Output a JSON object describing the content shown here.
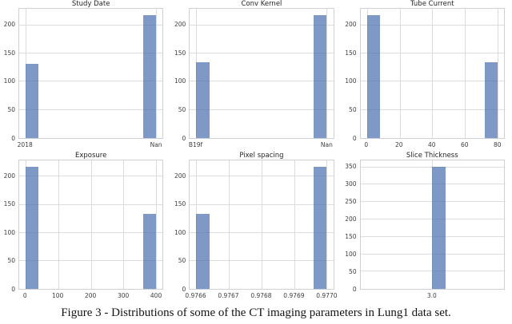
{
  "caption": "Figure 3 - Distributions of some of the CT imaging parameters in Lung1 data set.",
  "colors": {
    "bar_base": "#4C72B0",
    "bar_fill": "rgba(76,114,176,0.72)",
    "gridline": "#dcdcdc",
    "spine": "#cdd0d4",
    "tick_label": "#3d3d3d",
    "title_text": "#262626",
    "caption_text": "#141414"
  },
  "chart_data": [
    {
      "type": "bar",
      "title": "Study Date",
      "categories": [
        "2018",
        "Nan"
      ],
      "values": [
        132,
        218
      ],
      "ylim": [
        0,
        229
      ],
      "yticks": [
        0,
        50,
        100,
        150,
        200
      ],
      "grid": true,
      "legend": false,
      "xticks": [
        {
          "label": "2018",
          "pct": 4.55
        },
        {
          "label": "Nan",
          "pct": 95.45
        }
      ],
      "bars": [
        {
          "x": "2018",
          "value": 132,
          "left_pct": 4.55,
          "width_pct": 9.09
        },
        {
          "x": "Nan",
          "value": 218,
          "left_pct": 86.36,
          "width_pct": 9.09
        }
      ]
    },
    {
      "type": "bar",
      "title": "Conv Kernel",
      "categories": [
        "B19f",
        "Nan"
      ],
      "values": [
        134,
        218
      ],
      "ylim": [
        0,
        229
      ],
      "yticks": [
        0,
        50,
        100,
        150,
        200
      ],
      "grid": true,
      "legend": false,
      "xticks": [
        {
          "label": "B19f",
          "pct": 4.55
        },
        {
          "label": "Nan",
          "pct": 95.45
        }
      ],
      "bars": [
        {
          "x": "B19f",
          "value": 134,
          "left_pct": 4.55,
          "width_pct": 9.09
        },
        {
          "x": "Nan",
          "value": 218,
          "left_pct": 86.36,
          "width_pct": 9.09
        }
      ]
    },
    {
      "type": "histogram",
      "title": "Tube Current",
      "categories": [
        "0",
        "75"
      ],
      "values": [
        218,
        134
      ],
      "xlim": [
        -4,
        84
      ],
      "ylim": [
        0,
        229
      ],
      "yticks": [
        0,
        50,
        100,
        150,
        200
      ],
      "grid": true,
      "legend": false,
      "xticks": [
        {
          "label": "0",
          "pct": 4.55
        },
        {
          "label": "20",
          "pct": 27.27
        },
        {
          "label": "40",
          "pct": 50
        },
        {
          "label": "60",
          "pct": 72.73
        },
        {
          "label": "80",
          "pct": 95.45
        }
      ],
      "bars": [
        {
          "x": "0",
          "value": 218,
          "left_pct": 4.55,
          "width_pct": 9.09
        },
        {
          "x": "75",
          "value": 134,
          "left_pct": 86.36,
          "width_pct": 9.09
        }
      ]
    },
    {
      "type": "histogram",
      "title": "Exposure",
      "categories": [
        "0",
        "400"
      ],
      "values": [
        218,
        134
      ],
      "xlim": [
        -20,
        420
      ],
      "ylim": [
        0,
        229
      ],
      "yticks": [
        0,
        50,
        100,
        150,
        200
      ],
      "grid": true,
      "legend": false,
      "xticks": [
        {
          "label": "0",
          "pct": 4.55
        },
        {
          "label": "100",
          "pct": 27.27
        },
        {
          "label": "200",
          "pct": 50
        },
        {
          "label": "300",
          "pct": 72.73
        },
        {
          "label": "400",
          "pct": 95.45
        }
      ],
      "bars": [
        {
          "x": "0",
          "value": 218,
          "left_pct": 4.55,
          "width_pct": 9.09
        },
        {
          "x": "400",
          "value": 134,
          "left_pct": 86.36,
          "width_pct": 9.09
        }
      ]
    },
    {
      "type": "histogram",
      "title": "Pixel spacing",
      "categories": [
        "0.9766",
        "0.9770"
      ],
      "values": [
        134,
        218
      ],
      "xlim": [
        0.97655,
        0.97705
      ],
      "ylim": [
        0,
        229
      ],
      "yticks": [
        0,
        50,
        100,
        150,
        200
      ],
      "grid": true,
      "legend": false,
      "xticks": [
        {
          "label": "0.9766",
          "pct": 4.55
        },
        {
          "label": "0.9767",
          "pct": 27.27
        },
        {
          "label": "0.9768",
          "pct": 50
        },
        {
          "label": "0.9769",
          "pct": 72.73
        },
        {
          "label": "0.9770",
          "pct": 95.45
        }
      ],
      "bars": [
        {
          "x": "0.9766",
          "value": 134,
          "left_pct": 4.55,
          "width_pct": 9.09
        },
        {
          "x": "0.9770",
          "value": 218,
          "left_pct": 86.36,
          "width_pct": 9.09
        }
      ]
    },
    {
      "type": "histogram",
      "title": "Slice Thickness",
      "categories": [
        "3.0"
      ],
      "values": [
        352
      ],
      "xlim": [
        2.45,
        3.55
      ],
      "ylim": [
        0,
        370
      ],
      "yticks": [
        0,
        50,
        100,
        150,
        200,
        250,
        300,
        350
      ],
      "grid": true,
      "legend": false,
      "xticks": [
        {
          "label": "3.0",
          "pct": 50
        }
      ],
      "bars": [
        {
          "x": "3.0",
          "value": 352,
          "left_pct": 50,
          "width_pct": 9.09
        }
      ]
    }
  ]
}
